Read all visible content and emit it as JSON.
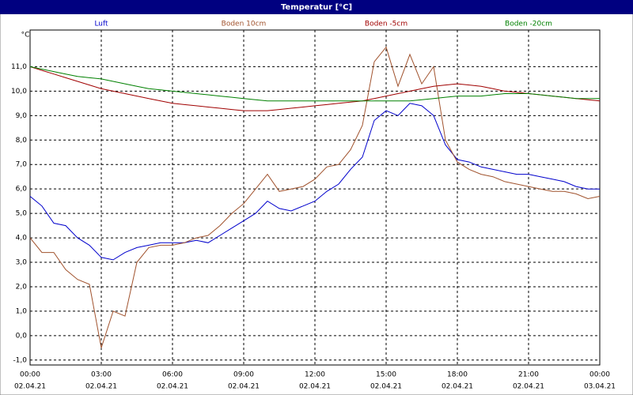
{
  "chart_data": {
    "type": "line",
    "title": "Temperatur [°C]",
    "ylabel": "°C",
    "x": [
      0,
      0.5,
      1,
      1.5,
      2,
      2.5,
      3,
      3.5,
      4,
      4.5,
      5,
      5.5,
      6,
      6.5,
      7,
      7.5,
      8,
      8.5,
      9,
      9.5,
      10,
      10.5,
      11,
      11.5,
      12,
      12.5,
      13,
      13.5,
      14,
      14.5,
      15,
      15.5,
      16,
      16.5,
      17,
      17.5,
      18,
      18.5,
      19,
      19.5,
      20,
      20.5,
      21,
      21.5,
      22,
      22.5,
      23,
      23.5,
      24
    ],
    "series": [
      {
        "name": "Luft",
        "color": "#0000cc",
        "values": [
          5.7,
          5.3,
          4.6,
          4.5,
          4.0,
          3.7,
          3.2,
          3.1,
          3.4,
          3.6,
          3.7,
          3.8,
          3.8,
          3.8,
          3.9,
          3.8,
          4.1,
          4.4,
          4.7,
          5.0,
          5.5,
          5.2,
          5.1,
          5.3,
          5.5,
          5.9,
          6.2,
          6.8,
          7.3,
          8.8,
          9.2,
          9.0,
          9.5,
          9.4,
          9.0,
          7.8,
          7.2,
          7.1,
          6.9,
          6.8,
          6.7,
          6.6,
          6.6,
          6.5,
          6.4,
          6.3,
          6.1,
          6.0,
          6.0
        ]
      },
      {
        "name": "Boden 10cm",
        "color": "#a0522d",
        "values": [
          4.0,
          3.4,
          3.4,
          2.7,
          2.3,
          2.1,
          -0.5,
          1.0,
          0.8,
          3.0,
          3.6,
          3.7,
          3.7,
          3.8,
          4.0,
          4.1,
          4.5,
          5.0,
          5.4,
          6.0,
          6.6,
          5.9,
          6.0,
          6.1,
          6.4,
          6.9,
          7.0,
          7.6,
          8.6,
          11.2,
          11.8,
          10.2,
          11.5,
          10.3,
          11.0,
          8.0,
          7.1,
          6.8,
          6.6,
          6.5,
          6.3,
          6.2,
          6.1,
          6.0,
          5.9,
          5.9,
          5.8,
          5.6,
          5.7
        ]
      },
      {
        "name": "Boden -5cm",
        "color": "#a00000",
        "values": [
          11.0,
          10.85,
          10.7,
          10.55,
          10.4,
          10.25,
          10.1,
          10.0,
          9.9,
          9.8,
          9.7,
          9.6,
          9.5,
          9.45,
          9.4,
          9.35,
          9.3,
          9.25,
          9.2,
          9.2,
          9.2,
          9.25,
          9.3,
          9.35,
          9.4,
          9.45,
          9.5,
          9.55,
          9.6,
          9.7,
          9.8,
          9.9,
          10.0,
          10.1,
          10.2,
          10.25,
          10.3,
          10.25,
          10.2,
          10.1,
          10.0,
          9.95,
          9.9,
          9.85,
          9.8,
          9.75,
          9.7,
          9.65,
          9.6
        ]
      },
      {
        "name": "Boden -20cm",
        "color": "#008000",
        "values": [
          11.0,
          10.9,
          10.8,
          10.7,
          10.6,
          10.55,
          10.5,
          10.4,
          10.3,
          10.2,
          10.1,
          10.05,
          10.0,
          9.95,
          9.9,
          9.85,
          9.8,
          9.75,
          9.7,
          9.65,
          9.6,
          9.6,
          9.6,
          9.6,
          9.6,
          9.6,
          9.6,
          9.6,
          9.6,
          9.6,
          9.6,
          9.6,
          9.6,
          9.65,
          9.7,
          9.75,
          9.8,
          9.8,
          9.8,
          9.85,
          9.9,
          9.9,
          9.9,
          9.85,
          9.8,
          9.75,
          9.7,
          9.7,
          9.7
        ]
      }
    ],
    "xlim": [
      0,
      24
    ],
    "ylim": [
      -1.2,
      12.5
    ],
    "xticks": [
      {
        "value": 0,
        "label": "00:00",
        "date": "02.04.21"
      },
      {
        "value": 3,
        "label": "03:00",
        "date": "02.04.21"
      },
      {
        "value": 6,
        "label": "06:00",
        "date": "02.04.21"
      },
      {
        "value": 9,
        "label": "09:00",
        "date": "02.04.21"
      },
      {
        "value": 12,
        "label": "12:00",
        "date": "02.04.21"
      },
      {
        "value": 15,
        "label": "15:00",
        "date": "02.04.21"
      },
      {
        "value": 18,
        "label": "18:00",
        "date": "02.04.21"
      },
      {
        "value": 21,
        "label": "21:00",
        "date": "02.04.21"
      },
      {
        "value": 24,
        "label": "00:00",
        "date": "03.04.21"
      }
    ],
    "yticks": [
      {
        "value": -1,
        "label": "-1,0"
      },
      {
        "value": 0,
        "label": "0,0"
      },
      {
        "value": 1,
        "label": "1,0"
      },
      {
        "value": 2,
        "label": "2,0"
      },
      {
        "value": 3,
        "label": "3,0"
      },
      {
        "value": 4,
        "label": "4,0"
      },
      {
        "value": 5,
        "label": "5,0"
      },
      {
        "value": 6,
        "label": "6,0"
      },
      {
        "value": 7,
        "label": "7,0"
      },
      {
        "value": 8,
        "label": "8,0"
      },
      {
        "value": 9,
        "label": "9,0"
      },
      {
        "value": 10,
        "label": "10,0"
      },
      {
        "value": 11,
        "label": "11,0"
      }
    ],
    "grid": true
  }
}
